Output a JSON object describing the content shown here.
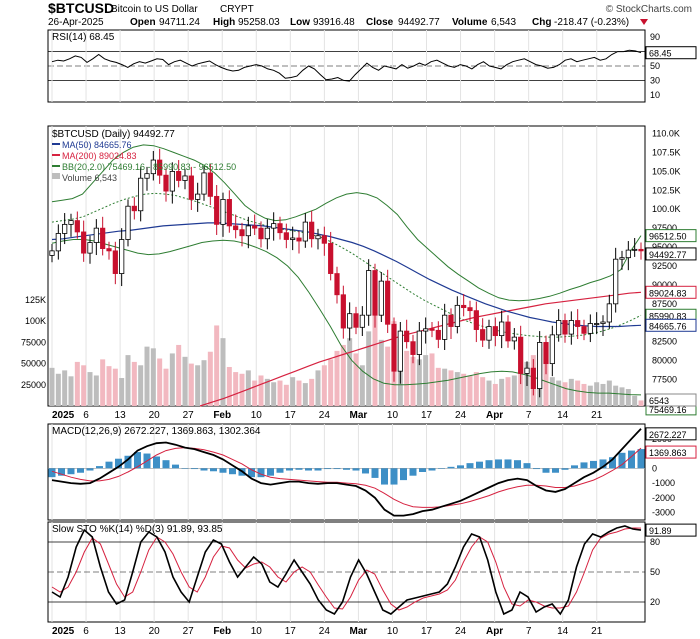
{
  "header": {
    "symbol": "$BTCUSD",
    "name": "Bitcoin to US Dollar",
    "exchange": "CRYPT",
    "watermark": "© StockCharts.com",
    "date": "26-Apr-2025",
    "open_label": "Open",
    "open": "94711.24",
    "high_label": "High",
    "high": "95258.03",
    "low_label": "Low",
    "low": "93916.48",
    "close_label": "Close",
    "close": "94492.77",
    "volume_label": "Volume",
    "volume": "6,543",
    "chg_label": "Chg",
    "chg": "-218.47 (-0.23%)",
    "chg_icon": "down-triangle-icon"
  },
  "colors": {
    "up": "#000000",
    "down": "#c8102e",
    "ma50": "#1f3a93",
    "ma200": "#d62240",
    "bb": "#2e7d32",
    "vol_up": "#bdbdbd",
    "vol_down": "#f2b8c0",
    "macd_hist": "#3d8fc6"
  },
  "chart_data": [
    {
      "type": "line",
      "title": "RSI(14) 68.45",
      "ylim": [
        0,
        100
      ],
      "y_ticks": [
        "90",
        "70",
        "50",
        "30",
        "10"
      ],
      "reference_lines": [
        70,
        50,
        30
      ],
      "last_value_label": "68.45",
      "series": [
        {
          "name": "RSI(14)",
          "values": [
            56,
            58,
            57,
            60,
            64,
            62,
            55,
            60,
            66,
            60,
            57,
            55,
            52,
            48,
            53,
            56,
            54,
            57,
            60,
            59,
            52,
            56,
            58,
            54,
            50,
            53,
            55,
            57,
            52,
            48,
            45,
            43,
            44,
            48,
            50,
            52,
            50,
            46,
            44,
            40,
            33,
            34,
            36,
            44,
            50,
            46,
            38,
            31,
            32,
            34,
            30,
            29,
            38,
            46,
            54,
            48,
            44,
            50,
            48,
            46,
            52,
            47,
            50,
            54,
            51,
            56,
            58,
            54,
            50,
            48,
            52,
            50,
            46,
            52,
            56,
            50,
            48,
            46,
            52,
            56,
            58,
            60,
            56,
            52,
            50,
            47,
            48,
            52,
            58,
            60,
            56,
            58,
            60,
            62,
            58,
            60,
            66,
            70,
            70,
            72,
            71,
            68.45
          ]
        }
      ]
    },
    {
      "type": "line",
      "title": "$BTCUSD (Daily) 94492.77",
      "legend": [
        "MA(50) 84665.76",
        "MA(200) 89024.83",
        "BB(20,2.0) 75469.16 - 85990.83 - 96512.50",
        "Volume 6,543"
      ],
      "y_ticks": [
        "110.0K",
        "107.5K",
        "105.0K",
        "102.5K",
        "100.0K",
        "97500",
        "95000",
        "92500",
        "90000",
        "87500",
        "85000",
        "82500",
        "80000",
        "77500",
        "75000"
      ],
      "ylim": [
        74000,
        111000
      ],
      "x_ticks": [
        "2025",
        "6",
        "13",
        "20",
        "27",
        "Feb",
        "10",
        "17",
        "24",
        "Mar",
        "10",
        "17",
        "24",
        "Apr",
        "7",
        "14",
        "21"
      ],
      "last_value_labels": [
        "96512.50",
        "94492.77",
        "89024.83",
        "85990.83",
        "84665.76",
        "75469.16",
        "6543"
      ],
      "ohlc_close": [
        94500,
        96800,
        98000,
        98500,
        97000,
        94200,
        95600,
        97500,
        94800,
        94500,
        91500,
        96000,
        100400,
        99800,
        104100,
        104700,
        106500,
        104500,
        102400,
        105000,
        103800,
        104400,
        101300,
        102000,
        104800,
        101700,
        98000,
        101300,
        97800,
        97300,
        96500,
        97800,
        97500,
        96100,
        97500,
        98100,
        96900,
        96000,
        96200,
        95800,
        98300,
        96100,
        96500,
        95500,
        91500,
        88700,
        84300,
        86200,
        84400,
        86000,
        91900,
        86000,
        90500,
        84800,
        78600,
        83900,
        82500,
        80800,
        83900,
        84200,
        84000,
        82800,
        86000,
        84500,
        87300,
        87000,
        86600,
        84100,
        82700,
        84500,
        83300,
        85100,
        82600,
        83100,
        78300,
        79000,
        76300,
        82400,
        79600,
        83400,
        85300,
        83500,
        85300,
        84500,
        83600,
        84900,
        84900,
        85100,
        87500,
        93400,
        93600,
        94600,
        94700,
        94500
      ],
      "series": [
        {
          "name": "MA(50)",
          "values": [
            96000,
            96100,
            96300,
            96500,
            96700,
            96900,
            97100,
            97200,
            97400,
            97600,
            97800,
            97900,
            98000,
            98100,
            98200,
            98200,
            98100,
            98000,
            97900,
            97800,
            97600,
            97400,
            97200,
            97000,
            96700,
            96400,
            96000,
            95600,
            95100,
            94500,
            93800,
            93100,
            92300,
            91500,
            90700,
            90000,
            89300,
            88700,
            88100,
            87500,
            87000,
            86500,
            86100,
            85700,
            85400,
            85100,
            84900,
            84700,
            84600,
            84500,
            84500,
            84500,
            84600,
            84665.76
          ]
        },
        {
          "name": "MA(200)",
          "values": [
            74000,
            74500,
            75000,
            75600,
            76200,
            76800,
            77400,
            78000,
            78600,
            79200,
            79800,
            80300,
            80800,
            81300,
            81800,
            82300,
            82800,
            83300,
            83700,
            84100,
            84500,
            84900,
            85300,
            85700,
            86000,
            86300,
            86600,
            86900,
            87200,
            87500,
            87700,
            87900,
            88100,
            88300,
            88500,
            88700,
            88900,
            89024.83
          ]
        },
        {
          "name": "BB upper",
          "values": [
            101000,
            101200,
            101400,
            102000,
            103500,
            105000,
            106500,
            107500,
            108200,
            108500,
            108400,
            108000,
            107500,
            107000,
            106500,
            105800,
            104800,
            103500,
            102000,
            100500,
            99500,
            98800,
            98500,
            98600,
            99000,
            99500,
            100000,
            100800,
            101500,
            102000,
            102200,
            102000,
            101500,
            100500,
            99300,
            97600,
            96000,
            94800,
            93600,
            92400,
            91400,
            90500,
            89600,
            88900,
            88300,
            88000,
            87900,
            88000,
            88200,
            88500,
            88900,
            89400,
            89800,
            90300,
            90700,
            91200,
            92000,
            94500,
            96512.5
          ]
        },
        {
          "name": "BB middle",
          "values": [
            98300,
            98500,
            98700,
            99000,
            99600,
            100200,
            100800,
            101300,
            101700,
            102000,
            102100,
            102000,
            101800,
            101400,
            101000,
            100500,
            100000,
            99500,
            99000,
            98500,
            98100,
            97700,
            97400,
            97200,
            97000,
            96700,
            96300,
            95700,
            95000,
            94200,
            93300,
            92400,
            91500,
            90600,
            89700,
            88800,
            88000,
            87300,
            86600,
            85900,
            85300,
            84800,
            84400,
            84000,
            83700,
            83500,
            83300,
            83200,
            83100,
            83100,
            83200,
            83300,
            83500,
            83800,
            84200,
            84700,
            85300,
            85990.83
          ]
        },
        {
          "name": "BB lower",
          "values": [
            95500,
            95800,
            96000,
            96000,
            95800,
            95400,
            95000,
            94600,
            94200,
            94000,
            94100,
            94400,
            94800,
            95200,
            95600,
            95800,
            95900,
            95800,
            95500,
            95000,
            94400,
            93600,
            92500,
            91000,
            89000,
            86800,
            84500,
            82000,
            80000,
            78600,
            77600,
            77000,
            76800,
            76800,
            76900,
            77000,
            77200,
            77400,
            77700,
            78000,
            78300,
            78500,
            78600,
            78500,
            78200,
            77800,
            77300,
            76800,
            76300,
            76000,
            75800,
            75700,
            75700,
            75600,
            75500,
            75469.16
          ]
        }
      ]
    },
    {
      "type": "bar",
      "title": "Volume 6,543",
      "y_ticks": [
        "125K",
        "100K",
        "75000",
        "50000",
        "25000"
      ],
      "ylim": [
        0,
        125000
      ],
      "values": [
        45000,
        38000,
        42000,
        35000,
        52000,
        48000,
        40000,
        36000,
        55000,
        47000,
        44000,
        33000,
        60000,
        52000,
        48000,
        70000,
        68000,
        56000,
        44000,
        62000,
        72000,
        58000,
        50000,
        48000,
        54000,
        64000,
        95000,
        80000,
        46000,
        40000,
        38000,
        42000,
        30000,
        36000,
        32000,
        28000,
        30000,
        25000,
        34000,
        30000,
        27000,
        32000,
        42000,
        48000,
        55000,
        65000,
        72000,
        80000,
        62000,
        48000,
        88000,
        110000,
        78000,
        70000,
        100000,
        72000,
        65000,
        58000,
        55000,
        60000,
        62000,
        45000,
        44000,
        42000,
        40000,
        38000,
        36000,
        40000,
        34000,
        30000,
        26000,
        32000,
        34000,
        36000,
        38000,
        52000,
        60000,
        68000,
        50000,
        34000,
        30000,
        28000,
        32000,
        30000,
        26000,
        24000,
        28000,
        26000,
        30000,
        24000,
        22000,
        20000,
        12000,
        6543
      ]
    },
    {
      "type": "line",
      "title": "MACD(12,26,9) 2672.227, 1369.863, 1302.364",
      "y_ticks": [
        "2000",
        "1000",
        "0",
        "-1000",
        "-2000",
        "-3000"
      ],
      "ylim": [
        -3500,
        3000
      ],
      "last_value_labels": [
        "2672.227",
        "1369.863"
      ],
      "series": [
        {
          "name": "MACD",
          "values": [
            -800,
            -900,
            -1000,
            -1050,
            -1000,
            -700,
            -300,
            100,
            600,
            1200,
            1500,
            1700,
            1750,
            1600,
            1400,
            1300,
            1100,
            900,
            600,
            200,
            -200,
            -700,
            -1000,
            -1100,
            -1000,
            -900,
            -900,
            -1000,
            -1050,
            -1000,
            -1000,
            -1100,
            -1200,
            -1500,
            -2000,
            -2800,
            -3200,
            -3200,
            -3100,
            -2900,
            -2800,
            -2600,
            -2400,
            -2200,
            -1900,
            -1600,
            -1300,
            -1000,
            -800,
            -700,
            -800,
            -1200,
            -1500,
            -1600,
            -1400,
            -1000,
            -600,
            -300,
            100,
            600,
            1300,
            2000,
            2672.227
          ]
        },
        {
          "name": "Signal",
          "values": [
            -200,
            -400,
            -600,
            -750,
            -850,
            -850,
            -750,
            -550,
            -250,
            100,
            500,
            900,
            1200,
            1350,
            1400,
            1350,
            1250,
            1100,
            900,
            600,
            300,
            -100,
            -400,
            -600,
            -700,
            -750,
            -800,
            -850,
            -900,
            -950,
            -950,
            -1000,
            -1050,
            -1150,
            -1350,
            -1700,
            -2100,
            -2400,
            -2600,
            -2650,
            -2650,
            -2600,
            -2500,
            -2400,
            -2250,
            -2050,
            -1850,
            -1600,
            -1400,
            -1250,
            -1150,
            -1150,
            -1200,
            -1300,
            -1300,
            -1200,
            -1000,
            -800,
            -500,
            -150,
            250,
            800,
            1369.863
          ]
        },
        {
          "name": "Histogram",
          "values": [
            -600,
            -500,
            -400,
            -300,
            -150,
            150,
            450,
            650,
            850,
            1100,
            1000,
            800,
            550,
            250,
            0,
            -50,
            -150,
            -200,
            -300,
            -400,
            -500,
            -600,
            -600,
            -500,
            -300,
            -150,
            -100,
            -150,
            -150,
            -50,
            -50,
            -100,
            -150,
            -350,
            -650,
            -1100,
            -1100,
            -800,
            -500,
            -250,
            -150,
            0,
            100,
            200,
            350,
            450,
            550,
            600,
            600,
            550,
            350,
            -50,
            -300,
            -300,
            -100,
            200,
            400,
            500,
            600,
            750,
            1050,
            1200,
            1302.364
          ]
        }
      ]
    },
    {
      "type": "line",
      "title": "Slow STO %K(14) %D(3) 91.89, 93.85",
      "ylim": [
        0,
        100
      ],
      "y_ticks": [
        "80",
        "50",
        "20"
      ],
      "reference_lines": [
        80,
        20
      ],
      "last_value_label": "91.89",
      "series": [
        {
          "name": "%K(14)",
          "values": [
            30,
            25,
            45,
            75,
            92,
            85,
            55,
            30,
            18,
            22,
            50,
            80,
            90,
            85,
            70,
            45,
            30,
            20,
            45,
            70,
            82,
            78,
            60,
            45,
            55,
            65,
            58,
            40,
            35,
            48,
            62,
            50,
            38,
            22,
            12,
            8,
            20,
            45,
            62,
            48,
            30,
            12,
            8,
            15,
            22,
            24,
            26,
            28,
            30,
            38,
            55,
            75,
            88,
            85,
            62,
            30,
            8,
            12,
            30,
            25,
            10,
            15,
            18,
            8,
            22,
            55,
            78,
            88,
            85,
            90,
            94,
            96,
            93,
            91.89
          ]
        },
        {
          "name": "%D(3)",
          "values": [
            35,
            30,
            35,
            50,
            70,
            84,
            78,
            58,
            38,
            25,
            30,
            50,
            72,
            85,
            80,
            68,
            50,
            35,
            30,
            45,
            65,
            76,
            74,
            62,
            54,
            58,
            60,
            55,
            45,
            40,
            50,
            55,
            50,
            37,
            25,
            14,
            13,
            25,
            42,
            52,
            48,
            32,
            18,
            12,
            15,
            20,
            24,
            26,
            28,
            32,
            42,
            60,
            75,
            85,
            80,
            60,
            35,
            18,
            16,
            22,
            20,
            16,
            14,
            14,
            16,
            30,
            50,
            72,
            84,
            88,
            90,
            93,
            94,
            93.85
          ]
        }
      ]
    }
  ]
}
